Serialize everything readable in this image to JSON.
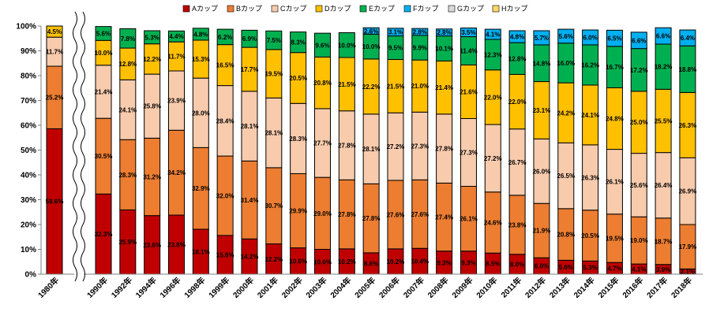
{
  "chart_data": {
    "type": "bar",
    "stacked": true,
    "percent": true,
    "categories": [
      "1980年",
      "1990年",
      "1992年",
      "1994年",
      "1996年",
      "1998年",
      "1999年",
      "2000年",
      "2001年",
      "2002年",
      "2003年",
      "2004年",
      "2005年",
      "2006年",
      "2007年",
      "2008年",
      "2009年",
      "2010年",
      "2011年",
      "2012年",
      "2013年",
      "2014年",
      "2015年",
      "2016年",
      "2017年",
      "2018年"
    ],
    "series": [
      {
        "name": "Aカップ",
        "color": "#C00000",
        "values": [
          58.6,
          32.3,
          25.9,
          23.6,
          23.8,
          18.1,
          15.6,
          14.2,
          12.2,
          10.6,
          10.0,
          10.2,
          8.6,
          10.2,
          10.4,
          9.3,
          9.3,
          8.5,
          8.0,
          6.6,
          5.6,
          5.3,
          4.7,
          4.1,
          3.9,
          2.1
        ]
      },
      {
        "name": "Bカップ",
        "color": "#ED7D31",
        "values": [
          25.2,
          30.5,
          28.3,
          31.2,
          34.2,
          32.9,
          32.0,
          31.4,
          30.7,
          29.9,
          29.0,
          27.8,
          27.8,
          27.6,
          27.6,
          27.4,
          26.1,
          24.6,
          23.8,
          21.9,
          20.8,
          20.5,
          19.5,
          19.0,
          18.7,
          17.9
        ]
      },
      {
        "name": "Cカップ",
        "color": "#F8CBAD",
        "values": [
          11.7,
          21.4,
          24.1,
          25.8,
          23.9,
          28.0,
          28.4,
          28.1,
          28.1,
          28.3,
          27.7,
          27.8,
          28.1,
          27.2,
          27.3,
          27.8,
          27.3,
          27.2,
          26.7,
          26.0,
          26.5,
          26.3,
          26.1,
          25.6,
          26.4,
          26.9
        ]
      },
      {
        "name": "Dカップ",
        "color": "#FFC000",
        "values": [
          4.5,
          10.0,
          12.8,
          12.2,
          11.7,
          15.3,
          16.5,
          17.7,
          19.5,
          20.5,
          20.8,
          21.5,
          22.2,
          21.5,
          21.0,
          21.4,
          21.6,
          22.0,
          22.0,
          23.1,
          24.2,
          24.1,
          24.8,
          25.0,
          25.5,
          26.3
        ]
      },
      {
        "name": "Eカップ",
        "color": "#00B050",
        "values": [
          0,
          5.6,
          7.8,
          5.3,
          4.4,
          4.8,
          6.2,
          6.9,
          7.5,
          8.3,
          9.6,
          10.0,
          10.0,
          9.5,
          9.9,
          10.1,
          11.4,
          12.3,
          12.8,
          14.8,
          16.0,
          16.2,
          16.7,
          17.2,
          18.2,
          18.8
        ]
      },
      {
        "name": "Fカップ",
        "color": "#00B0F0",
        "values": [
          0,
          0,
          0,
          0,
          0,
          0,
          0,
          0,
          0,
          0,
          0,
          0,
          2.6,
          3.1,
          2.8,
          2.8,
          3.5,
          4.1,
          4.8,
          5.7,
          5.6,
          6.0,
          6.5,
          6.6,
          6.6,
          6.4
        ]
      },
      {
        "name": "Gカップ",
        "color": "#D9D9D9",
        "values": [
          0,
          0,
          0,
          0,
          0,
          0,
          0,
          0,
          0,
          0,
          0,
          0,
          0,
          0,
          0,
          0,
          0,
          0,
          0,
          0,
          0,
          0,
          0,
          0,
          0,
          0
        ]
      },
      {
        "name": "Hカップ",
        "color": "#FFD966",
        "values": [
          0,
          0,
          0,
          0,
          0,
          0,
          0,
          0,
          0,
          0,
          0,
          0,
          0,
          0,
          0,
          0,
          0,
          0,
          0,
          0,
          0,
          0,
          0,
          0,
          0,
          0
        ]
      }
    ],
    "ylim": [
      0,
      100
    ],
    "yticks": [
      "0%",
      "10%",
      "20%",
      "30%",
      "40%",
      "50%",
      "60%",
      "70%",
      "80%",
      "90%",
      "100%"
    ],
    "legend": "top",
    "axis_break": "between 1980年 and 1990年",
    "grid": false
  }
}
